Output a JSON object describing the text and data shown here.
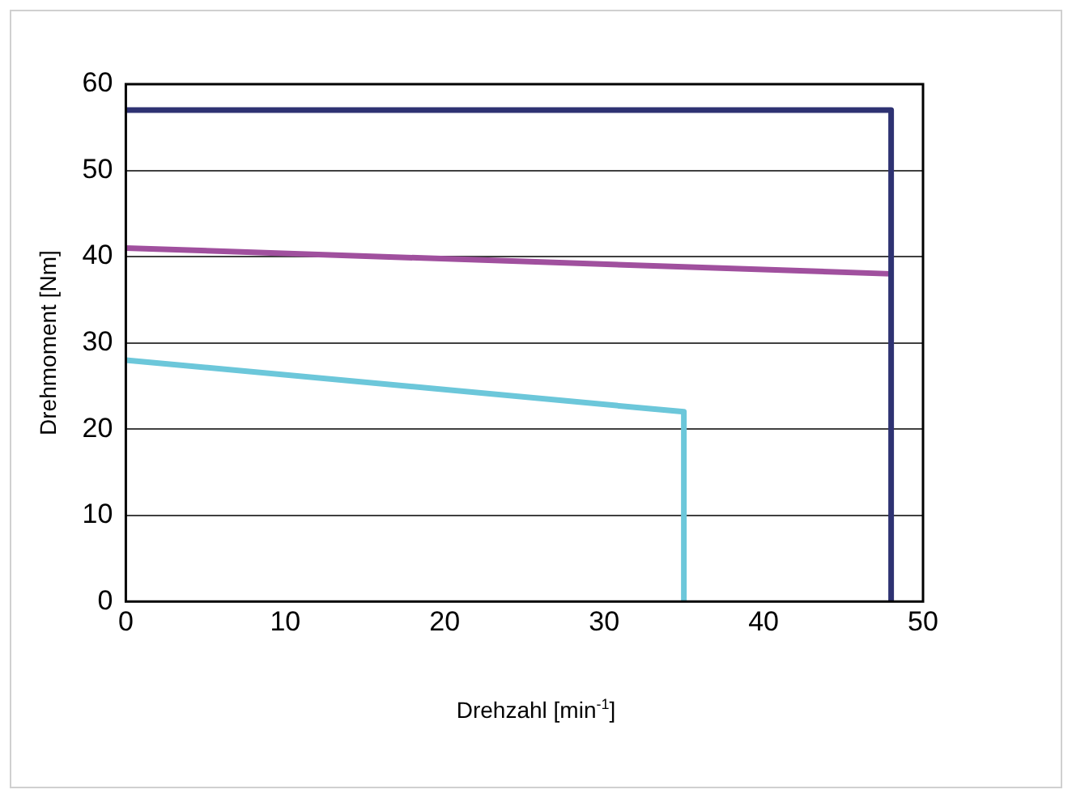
{
  "chart_data": {
    "type": "line",
    "xlabel": "Drehzahl [min$^{-1}$]",
    "ylabel": "Drehmoment [Nm]",
    "xlim": [
      0,
      50
    ],
    "xticks": [
      0,
      10,
      20,
      30,
      40,
      50
    ],
    "ylim": [
      0,
      60
    ],
    "yticks": [
      0,
      10,
      20,
      30,
      40,
      50,
      60
    ],
    "grid": "y",
    "legend": false,
    "marker": "none",
    "line_style": "solid",
    "series": [
      {
        "color": "#2e3272",
        "x": [
          0,
          48,
          48
        ],
        "values": [
          57,
          57,
          0
        ]
      },
      {
        "color": "#a0509e",
        "x": [
          0,
          48
        ],
        "values": [
          41,
          38
        ]
      },
      {
        "color": "#6cc7da",
        "x": [
          0,
          35,
          35
        ],
        "values": [
          28,
          22,
          0
        ]
      }
    ]
  }
}
